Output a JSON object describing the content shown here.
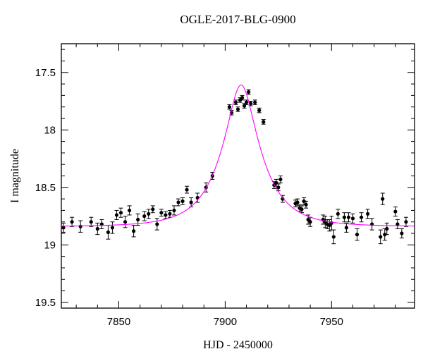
{
  "chart_data": {
    "type": "scatter",
    "title": "OGLE-2017-BLG-0900",
    "xlabel": "HJD - 2450000",
    "ylabel": "I magnitude",
    "xlim": [
      7823,
      7989
    ],
    "ylim": [
      19.55,
      17.25
    ],
    "y_inverted": true,
    "x_ticks": [
      7850,
      7900,
      7950
    ],
    "y_ticks": [
      17.5,
      18,
      18.5,
      19,
      19.5
    ],
    "grid": false,
    "legend": "none",
    "colors": {
      "points": "#000000",
      "model": "#ff00ff",
      "axes": "#000000"
    },
    "series": [
      {
        "kind": "points_with_errorbars",
        "x": [
          7824,
          7828,
          7832,
          7837,
          7840,
          7842,
          7845,
          7847,
          7849,
          7851,
          7853,
          7855,
          7857,
          7859,
          7862,
          7864,
          7866,
          7868,
          7870,
          7872,
          7874,
          7876,
          7878,
          7880,
          7882,
          7884,
          7887,
          7891,
          7894,
          7902,
          7903,
          7905,
          7906,
          7907,
          7908,
          7909,
          7910,
          7911,
          7912,
          7914,
          7916,
          7918,
          7923,
          7924,
          7925,
          7926,
          7927,
          7933,
          7934,
          7935,
          7936,
          7937,
          7938,
          7939,
          7940,
          7946,
          7947,
          7948,
          7949,
          7950,
          7951,
          7953,
          7956,
          7957,
          7958,
          7960,
          7962,
          7964,
          7967,
          7969,
          7973,
          7974,
          7975,
          7976,
          7980,
          7981,
          7983,
          7985
        ],
        "y": [
          18.85,
          18.8,
          18.84,
          18.8,
          18.86,
          18.82,
          18.89,
          18.85,
          18.74,
          18.72,
          18.8,
          18.7,
          18.88,
          18.78,
          18.75,
          18.73,
          18.69,
          18.82,
          18.72,
          18.74,
          18.73,
          18.7,
          18.63,
          18.62,
          18.52,
          18.63,
          18.59,
          18.5,
          18.4,
          17.8,
          17.85,
          17.76,
          17.82,
          17.74,
          17.72,
          17.79,
          17.76,
          17.67,
          17.77,
          17.76,
          17.83,
          17.93,
          18.48,
          18.46,
          18.5,
          18.43,
          18.6,
          18.64,
          18.63,
          18.68,
          18.69,
          18.62,
          18.65,
          18.78,
          18.8,
          18.78,
          18.8,
          18.82,
          18.83,
          18.81,
          18.93,
          18.73,
          18.76,
          18.85,
          18.76,
          18.77,
          18.91,
          18.76,
          18.73,
          18.82,
          18.93,
          18.6,
          18.91,
          18.86,
          18.71,
          18.82,
          18.9,
          18.8
        ],
        "err": [
          0.04,
          0.04,
          0.05,
          0.04,
          0.05,
          0.04,
          0.06,
          0.05,
          0.04,
          0.04,
          0.05,
          0.04,
          0.05,
          0.05,
          0.04,
          0.04,
          0.03,
          0.05,
          0.03,
          0.03,
          0.03,
          0.04,
          0.03,
          0.03,
          0.03,
          0.04,
          0.04,
          0.04,
          0.03,
          0.02,
          0.02,
          0.02,
          0.02,
          0.02,
          0.02,
          0.02,
          0.02,
          0.02,
          0.02,
          0.02,
          0.02,
          0.02,
          0.03,
          0.03,
          0.03,
          0.03,
          0.03,
          0.03,
          0.03,
          0.03,
          0.03,
          0.03,
          0.03,
          0.04,
          0.04,
          0.04,
          0.05,
          0.04,
          0.05,
          0.06,
          0.06,
          0.04,
          0.04,
          0.04,
          0.04,
          0.04,
          0.05,
          0.04,
          0.04,
          0.05,
          0.06,
          0.05,
          0.05,
          0.05,
          0.04,
          0.04,
          0.04,
          0.04
        ]
      },
      {
        "kind": "model_curve",
        "model": {
          "t0": 7907.5,
          "u0": 0.335,
          "tE": 18.0,
          "baseline": 18.84
        },
        "x_range": [
          7823,
          7989
        ]
      }
    ]
  }
}
